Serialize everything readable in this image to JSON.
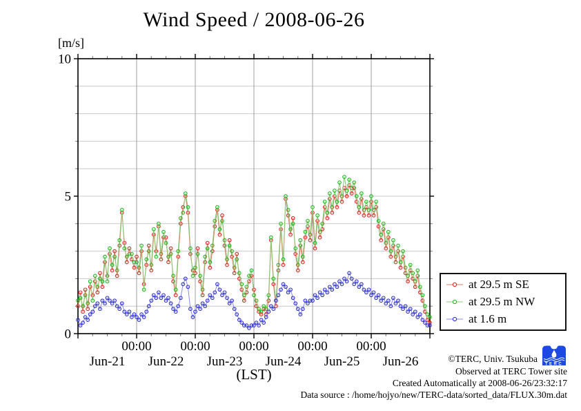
{
  "header": {
    "title": "Wind Speed / 2008-06-26"
  },
  "footer": {
    "copyright": "©TERC, Univ. Tsukuba",
    "observed": "Observed at TERC Tower site",
    "created": "Created Automatically at 2008-06-26/23:32:17",
    "datasource": "Data source : /home/hojyo/new/TERC-data/sorted_data/FLUX.30m.dat",
    "logo_text": "TERC",
    "logo_color": "#1b49e2"
  },
  "chart_data": {
    "type": "line",
    "title": "Wind Speed / 2008-06-26",
    "xlabel": "(LST)",
    "ylabel": "[m/s]",
    "ylim": [
      0,
      10
    ],
    "grid": "on",
    "legend_position": "outside-right-bottom",
    "colors": {
      "h_gridline": "#c9c9c9",
      "v_gridline": "#9e9e9e",
      "axis": "#000000",
      "minor_tick": "#777777"
    },
    "y_axis": {
      "units_label": "[m/s]",
      "min": 0,
      "max": 10,
      "tick_labels": [
        {
          "value": 0,
          "label": "0"
        },
        {
          "value": 5,
          "label": "5"
        },
        {
          "value": 10,
          "label": "10"
        }
      ],
      "gridline_step": 1
    },
    "x_axis": {
      "label": "(LST)",
      "total_hours": 144,
      "minor_tick_hours": 6,
      "midnight_label": "00:00",
      "midnight_ticks": [
        24,
        48,
        72,
        96,
        120
      ],
      "day_labels": [
        "Jun-21",
        "Jun-22",
        "Jun-23",
        "Jun-24",
        "Jun-25",
        "Jun-26"
      ],
      "day_center_hours": [
        12,
        36,
        60,
        84,
        108,
        132
      ]
    },
    "series": [
      {
        "name": "at 29.5 m SE",
        "marker_color": "#e42222",
        "line_color": "#dd7a66",
        "x_step_hours": 1,
        "values": [
          1.0,
          1.5,
          0.8,
          1.6,
          0.9,
          1.7,
          1.4,
          1.9,
          1.5,
          2.2,
          1.7,
          2.6,
          2.1,
          2.9,
          2.3,
          3.0,
          2.1,
          3.2,
          4.4,
          3.3,
          2.6,
          3.1,
          2.7,
          2.4,
          2.8,
          2.2,
          3.0,
          1.8,
          2.5,
          3.2,
          2.3,
          3.6,
          3.0,
          3.9,
          2.7,
          3.5,
          3.5,
          2.6,
          3.1,
          1.9,
          1.4,
          2.8,
          4.0,
          4.6,
          5.0,
          4.4,
          2.9,
          2.3,
          2.2,
          3.1,
          1.9,
          1.4,
          2.6,
          3.3,
          2.4,
          3.0,
          3.9,
          4.5,
          3.6,
          4.3,
          3.2,
          2.5,
          3.4,
          2.8,
          2.2,
          2.9,
          2.0,
          1.6,
          1.2,
          1.5,
          1.9,
          2.1,
          1.6,
          1.0,
          0.8,
          0.7,
          0.9,
          0.7,
          1.2,
          3.4,
          1.8,
          1.0,
          2.3,
          3.8,
          2.5,
          4.9,
          4.3,
          3.6,
          4.2,
          2.9,
          2.3,
          3.2,
          2.6,
          3.5,
          3.9,
          3.4,
          4.4,
          3.1,
          4.1,
          3.5,
          3.8,
          4.6,
          4.2,
          4.9,
          4.4,
          5.0,
          4.6,
          5.2,
          4.8,
          5.3,
          5.0,
          5.4,
          5.1,
          5.3,
          4.8,
          4.4,
          4.9,
          4.3,
          4.6,
          4.3,
          4.8,
          4.3,
          4.6,
          3.9,
          3.4,
          3.8,
          3.1,
          3.5,
          2.8,
          3.2,
          2.6,
          3.0,
          2.4,
          2.8,
          2.2,
          1.9,
          2.3,
          2.0,
          1.7,
          2.1,
          1.5,
          1.2,
          0.8,
          0.5,
          0.4
        ]
      },
      {
        "name": "at 29.5 m NW",
        "marker_color": "#1fbb1f",
        "line_color": "#84cc74",
        "x_step_hours": 1,
        "values": [
          1.2,
          1.3,
          1.0,
          1.4,
          1.1,
          1.9,
          1.2,
          2.1,
          1.7,
          2.0,
          1.9,
          2.8,
          1.9,
          3.1,
          2.5,
          2.8,
          2.3,
          3.4,
          4.5,
          3.1,
          2.8,
          2.9,
          2.9,
          2.6,
          2.6,
          2.4,
          3.2,
          1.6,
          2.7,
          3.0,
          2.5,
          3.8,
          2.8,
          4.0,
          2.9,
          3.7,
          3.3,
          2.8,
          2.9,
          2.1,
          1.6,
          3.0,
          4.2,
          4.4,
          5.1,
          4.6,
          3.1,
          2.1,
          2.4,
          2.9,
          2.1,
          1.6,
          2.8,
          3.1,
          2.6,
          3.2,
          4.1,
          4.6,
          3.8,
          4.1,
          3.4,
          2.7,
          3.2,
          3.0,
          2.4,
          2.7,
          2.2,
          1.8,
          1.4,
          1.7,
          2.1,
          2.3,
          1.4,
          1.2,
          0.9,
          0.8,
          1.0,
          0.9,
          1.4,
          3.5,
          2.0,
          1.2,
          2.5,
          4.0,
          2.7,
          5.0,
          4.5,
          3.8,
          4.0,
          3.1,
          2.5,
          3.4,
          2.8,
          3.7,
          4.1,
          3.6,
          4.6,
          3.3,
          4.3,
          3.7,
          4.0,
          4.8,
          4.4,
          5.1,
          4.6,
          5.2,
          4.8,
          5.5,
          5.0,
          5.7,
          5.2,
          5.6,
          5.3,
          5.5,
          5.0,
          4.6,
          5.1,
          4.5,
          4.8,
          4.5,
          5.0,
          4.5,
          4.8,
          4.1,
          3.6,
          4.0,
          3.3,
          3.7,
          3.0,
          3.4,
          2.8,
          3.2,
          2.6,
          3.0,
          2.4,
          2.1,
          2.5,
          2.2,
          1.9,
          2.3,
          1.7,
          1.4,
          1.0,
          0.7,
          0.6
        ]
      },
      {
        "name": "at 1.6 m",
        "marker_color": "#2f2fe0",
        "line_color": "#8a8aee",
        "x_step_hours": 1,
        "values": [
          0.5,
          0.3,
          0.4,
          0.6,
          0.5,
          0.7,
          0.8,
          1.0,
          1.1,
          0.9,
          1.2,
          1.1,
          1.3,
          1.2,
          1.1,
          1.2,
          1.0,
          0.9,
          1.1,
          0.8,
          0.7,
          0.8,
          0.6,
          0.7,
          0.6,
          0.5,
          0.7,
          0.6,
          0.8,
          1.0,
          1.2,
          1.4,
          1.3,
          1.5,
          1.3,
          1.4,
          1.2,
          1.3,
          1.1,
          0.9,
          0.8,
          1.0,
          1.3,
          1.8,
          2.0,
          1.7,
          0.9,
          0.6,
          0.8,
          1.0,
          0.9,
          1.1,
          1.0,
          1.2,
          1.4,
          1.3,
          1.5,
          1.8,
          1.6,
          1.4,
          1.5,
          1.3,
          1.1,
          1.2,
          0.9,
          0.7,
          0.5,
          0.4,
          0.3,
          0.3,
          0.2,
          0.3,
          0.3,
          0.4,
          0.3,
          0.5,
          0.4,
          0.6,
          0.8,
          1.0,
          0.9,
          1.2,
          1.4,
          1.6,
          1.8,
          1.7,
          1.5,
          1.6,
          1.3,
          1.1,
          0.9,
          0.7,
          0.9,
          1.2,
          1.1,
          1.2,
          1.2,
          1.4,
          1.3,
          1.5,
          1.4,
          1.6,
          1.5,
          1.7,
          1.6,
          1.8,
          1.7,
          1.9,
          1.8,
          2.0,
          1.9,
          2.2,
          2.0,
          1.8,
          1.9,
          1.7,
          1.8,
          1.6,
          1.5,
          1.6,
          1.4,
          1.5,
          1.3,
          1.4,
          1.2,
          1.3,
          1.1,
          1.2,
          1.0,
          1.3,
          1.1,
          1.2,
          1.0,
          0.9,
          1.0,
          0.8,
          0.9,
          0.7,
          0.8,
          0.6,
          0.7,
          0.5,
          0.4,
          0.3,
          0.3
        ]
      }
    ]
  }
}
